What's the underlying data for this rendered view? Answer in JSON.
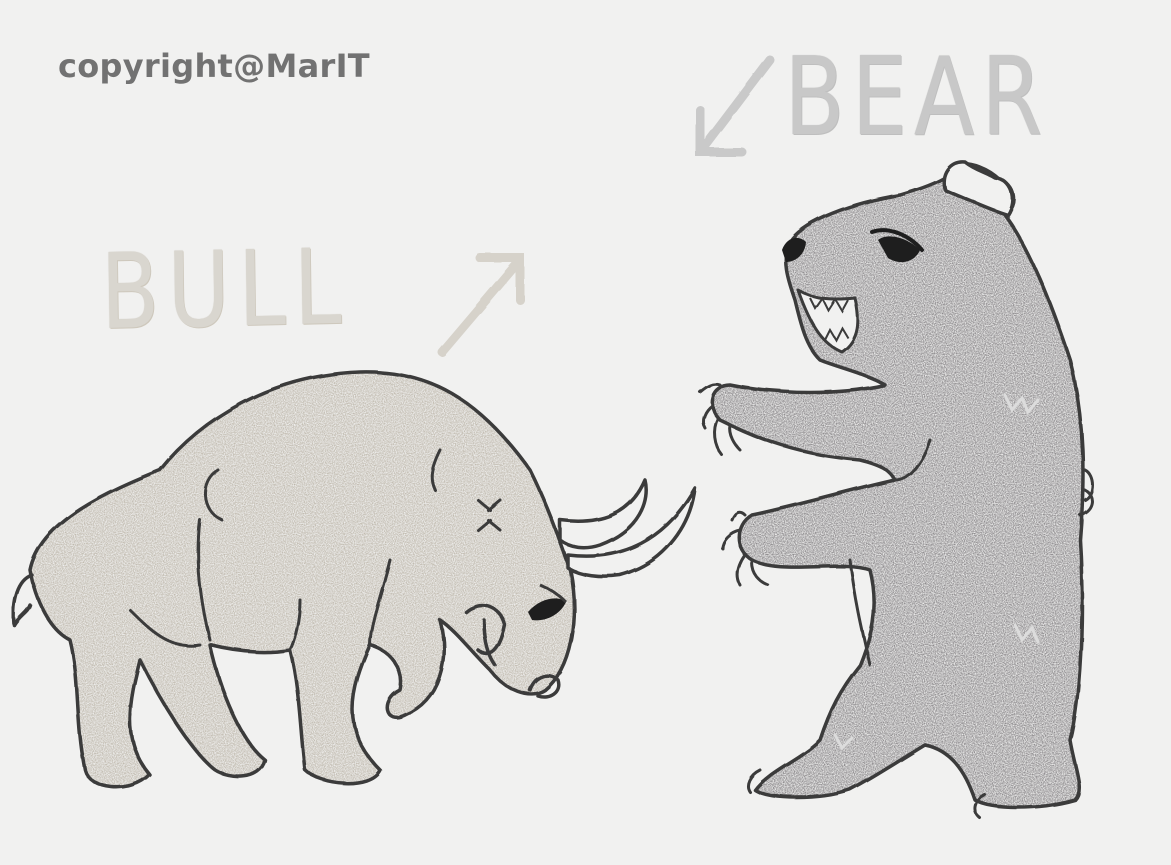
{
  "watermark": {
    "text": "copyright@MarIT"
  },
  "labels": {
    "bull": "BULL",
    "bear": "BEAR"
  },
  "colors": {
    "background": "#f1f1f0",
    "bull_fill": "#b9b2a5",
    "bear_fill": "#7d7a7d",
    "outline": "#333333",
    "bull_label": "#d9d6cf",
    "bear_label": "#c8c8c8",
    "watermark": "#727272"
  },
  "icons": {
    "bull_arrow": "arrow-up-right-icon",
    "bear_arrow": "arrow-down-left-icon"
  }
}
